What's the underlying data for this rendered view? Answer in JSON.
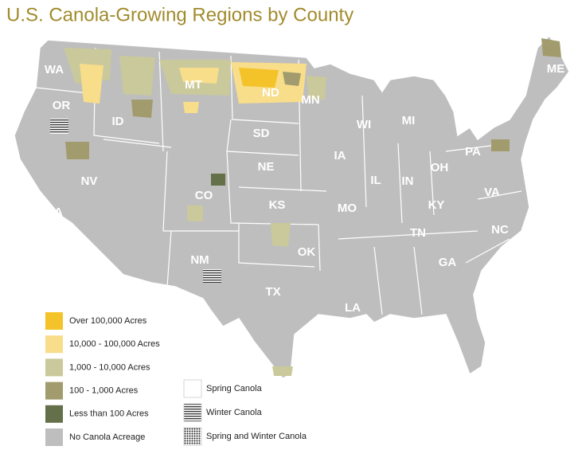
{
  "title": "U.S. Canola-Growing Regions by County",
  "states": [
    "WA",
    "OR",
    "ID",
    "MT",
    "ND",
    "MN",
    "SD",
    "WI",
    "MI",
    "NV",
    "CA",
    "NE",
    "IA",
    "IL",
    "IN",
    "OH",
    "PA",
    "CO",
    "KS",
    "MO",
    "KY",
    "VA",
    "NC",
    "TN",
    "NM",
    "OK",
    "GA",
    "TX",
    "LA",
    "ME"
  ],
  "legend": {
    "acreage": [
      {
        "label": "Over 100,000 Acres",
        "color": "#f4c329"
      },
      {
        "label": "10,000 - 100,000 Acres",
        "color": "#f8dd8a"
      },
      {
        "label": "1,000 - 10,000 Acres",
        "color": "#c9c99c"
      },
      {
        "label": "100 - 1,000 Acres",
        "color": "#a29b6d"
      },
      {
        "label": "Less than 100 Acres",
        "color": "#637049"
      },
      {
        "label": "No Canola Acreage",
        "color": "#bebebe"
      }
    ],
    "type": [
      {
        "label": "Spring Canola",
        "pattern": "none"
      },
      {
        "label": "Winter Canola",
        "pattern": "lines"
      },
      {
        "label": "Spring and Winter Canola",
        "pattern": "dots"
      }
    ]
  }
}
